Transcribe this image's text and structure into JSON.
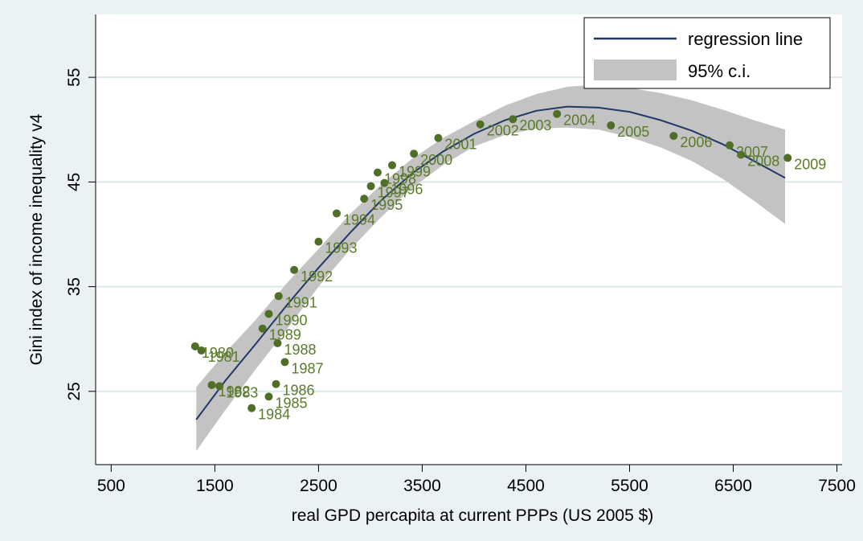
{
  "chart_data": {
    "type": "scatter",
    "xlabel": "real GPD percapita at current PPPs (US 2005 $)",
    "ylabel": "Gini index of income inequality v4",
    "xlim": [
      350,
      7550
    ],
    "ylim": [
      18,
      61
    ],
    "x_ticks": [
      "500",
      "1500",
      "2500",
      "3500",
      "4500",
      "5500",
      "6500",
      "7500"
    ],
    "y_ticks": [
      "25",
      "35",
      "45",
      "55"
    ],
    "grid": "horizontal",
    "legend_position": "top-right",
    "legend": [
      {
        "label": "regression line",
        "kind": "line",
        "color": "#1f3a66"
      },
      {
        "label": "95% c.i.",
        "kind": "band",
        "color": "#c3c3c3"
      }
    ],
    "colors": {
      "points": "#4f6e27",
      "point_labels": "#5a7a2a",
      "line": "#1f3a66",
      "band": "#c3c3c3",
      "plot_bg": "#ffffff",
      "outer_bg": "#eaf2f3",
      "grid": "#dce9ea"
    },
    "series": [
      {
        "name": "points",
        "points": [
          {
            "year": "1980",
            "x": 1310,
            "y": 29.3
          },
          {
            "year": "1981",
            "x": 1370,
            "y": 28.9
          },
          {
            "year": "1982",
            "x": 1470,
            "y": 25.6
          },
          {
            "year": "1983",
            "x": 1545,
            "y": 25.5
          },
          {
            "year": "1984",
            "x": 1855,
            "y": 23.4
          },
          {
            "year": "1985",
            "x": 2020,
            "y": 24.5
          },
          {
            "year": "1986",
            "x": 2090,
            "y": 25.7
          },
          {
            "year": "1987",
            "x": 2175,
            "y": 27.8
          },
          {
            "year": "1988",
            "x": 2105,
            "y": 29.6
          },
          {
            "year": "1989",
            "x": 1960,
            "y": 31.0
          },
          {
            "year": "1990",
            "x": 2020,
            "y": 32.4
          },
          {
            "year": "1991",
            "x": 2115,
            "y": 34.1
          },
          {
            "year": "1992",
            "x": 2265,
            "y": 36.6
          },
          {
            "year": "1993",
            "x": 2500,
            "y": 39.3
          },
          {
            "year": "1994",
            "x": 2675,
            "y": 42.0
          },
          {
            "year": "1995",
            "x": 2940,
            "y": 43.4
          },
          {
            "year": "1996",
            "x": 3135,
            "y": 44.9
          },
          {
            "year": "1997",
            "x": 3005,
            "y": 44.6
          },
          {
            "year": "1998",
            "x": 3070,
            "y": 45.9
          },
          {
            "year": "1999",
            "x": 3210,
            "y": 46.6
          },
          {
            "year": "2000",
            "x": 3420,
            "y": 47.7
          },
          {
            "year": "2001",
            "x": 3655,
            "y": 49.2
          },
          {
            "year": "2002",
            "x": 4060,
            "y": 50.5
          },
          {
            "year": "2003",
            "x": 4375,
            "y": 51.0
          },
          {
            "year": "2004",
            "x": 4800,
            "y": 51.5
          },
          {
            "year": "2005",
            "x": 5320,
            "y": 50.4
          },
          {
            "year": "2006",
            "x": 5925,
            "y": 49.4
          },
          {
            "year": "2007",
            "x": 6465,
            "y": 48.5
          },
          {
            "year": "2008",
            "x": 6575,
            "y": 47.6
          },
          {
            "year": "2009",
            "x": 7025,
            "y": 47.3
          }
        ]
      },
      {
        "name": "regression line",
        "type": "line",
        "x": [
          1320,
          1600,
          1900,
          2200,
          2500,
          2800,
          3100,
          3400,
          3700,
          4000,
          4300,
          4600,
          4900,
          5200,
          5500,
          5800,
          6100,
          6400,
          6700,
          7000
        ],
        "y": [
          22.3,
          26.0,
          29.6,
          33.3,
          36.8,
          40.1,
          43.2,
          45.8,
          47.9,
          49.6,
          50.9,
          51.8,
          52.2,
          52.1,
          51.7,
          50.9,
          49.9,
          48.6,
          47.0,
          45.4
        ]
      },
      {
        "name": "95% c.i.",
        "type": "area",
        "x": [
          1320,
          1600,
          1900,
          2200,
          2500,
          2800,
          3100,
          3400,
          3700,
          4000,
          4300,
          4600,
          4900,
          5200,
          5500,
          5800,
          6100,
          6400,
          6700,
          7000
        ],
        "upper": [
          25.4,
          28.7,
          31.9,
          35.4,
          38.6,
          41.9,
          44.7,
          47.2,
          49.2,
          50.8,
          52.3,
          53.4,
          54.1,
          54.3,
          54.0,
          53.5,
          52.8,
          51.9,
          50.9,
          50.0
        ],
        "lower": [
          19.3,
          23.2,
          27.2,
          31.0,
          35.0,
          38.5,
          41.6,
          44.4,
          46.6,
          48.4,
          49.5,
          50.1,
          50.2,
          50.0,
          49.3,
          48.3,
          47.0,
          45.3,
          43.2,
          41.0
        ]
      }
    ]
  }
}
